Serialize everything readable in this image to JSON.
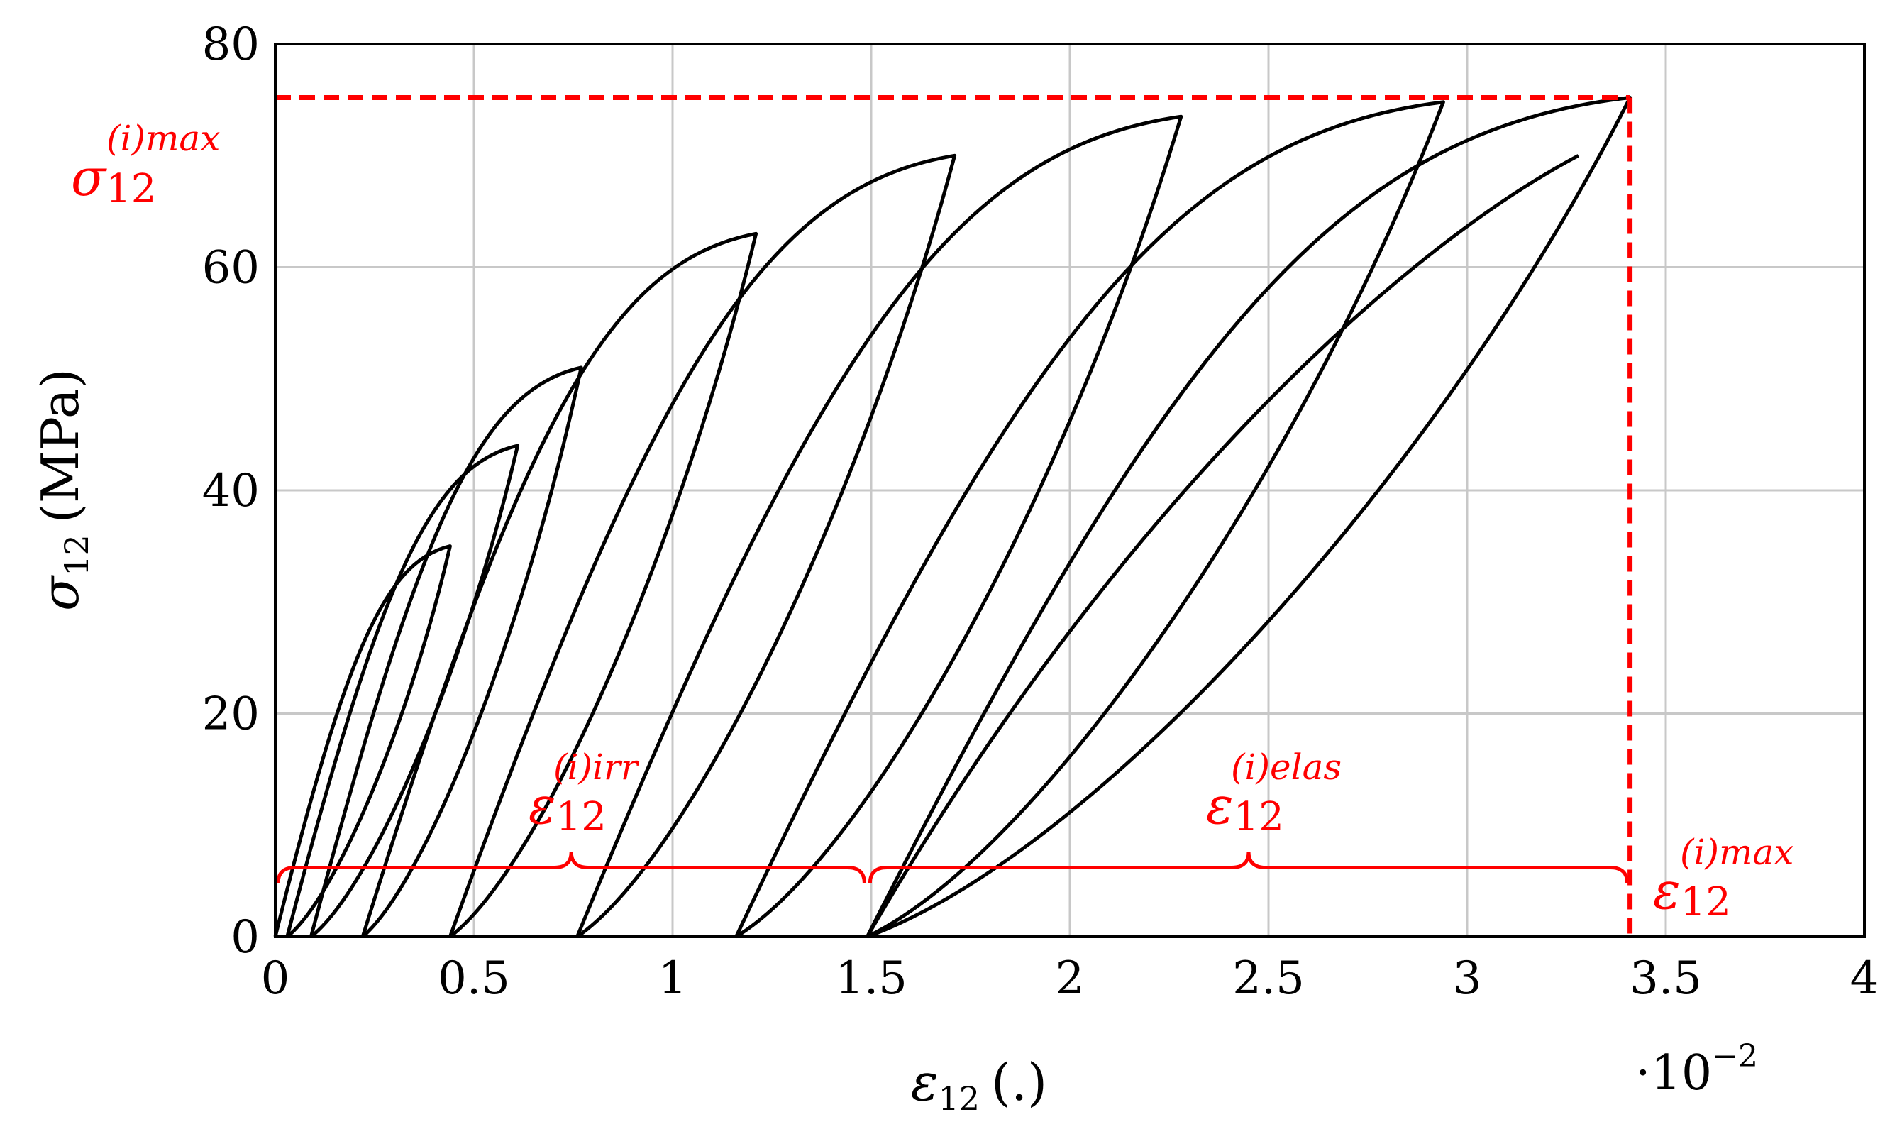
{
  "chart_data": {
    "type": "line",
    "xlabel": {
      "symbol": "ε",
      "sub": "12",
      "unit": "(.)"
    },
    "ylabel": {
      "symbol": "σ",
      "sub": "12",
      "unit": "(MPa)"
    },
    "x_multiplier": {
      "base": "·10",
      "exp": "−2"
    },
    "xlim": [
      0,
      4
    ],
    "ylim": [
      0,
      80
    ],
    "xticks": [
      0,
      0.5,
      1,
      1.5,
      2,
      2.5,
      3,
      3.5,
      4
    ],
    "xtick_labels": [
      "0",
      "0.5",
      "1",
      "1.5",
      "2",
      "2.5",
      "3",
      "3.5",
      "4"
    ],
    "yticks": [
      0,
      20,
      40,
      60,
      80
    ],
    "ytick_labels": [
      "0",
      "20",
      "40",
      "60",
      "80"
    ],
    "grid": true,
    "loops": [
      {
        "start": 0.0,
        "peak": [
          0.44,
          35.0
        ],
        "ret": 0.03
      },
      {
        "start": 0.03,
        "peak": [
          0.61,
          44.0
        ],
        "ret": 0.09
      },
      {
        "start": 0.09,
        "peak": [
          0.77,
          51.0
        ],
        "ret": 0.22
      },
      {
        "start": 0.22,
        "peak": [
          1.21,
          63.0
        ],
        "ret": 0.44
      },
      {
        "start": 0.44,
        "peak": [
          1.71,
          70.0
        ],
        "ret": 0.76
      },
      {
        "start": 0.76,
        "peak": [
          2.28,
          73.5
        ],
        "ret": 1.16
      },
      {
        "start": 1.16,
        "peak": [
          2.94,
          74.8
        ],
        "ret": 1.49
      },
      {
        "start": 1.49,
        "peak": [
          3.41,
          75.2
        ],
        "ret": 1.49
      }
    ],
    "final_reload": {
      "start": 1.49,
      "end": [
        3.28,
        70.0
      ]
    },
    "annotations": {
      "sigma_max": {
        "symbol": "σ",
        "sub": "12",
        "sup": "(i)max",
        "value_y": 75.2
      },
      "eps_max": {
        "symbol": "ε",
        "sub": "12",
        "sup": "(i)max",
        "value_x": 3.41
      },
      "eps_irr": {
        "symbol": "ε",
        "sub": "12",
        "sup": "(i)irr",
        "range": [
          0,
          1.49
        ]
      },
      "eps_elas": {
        "symbol": "ε",
        "sub": "12",
        "sup": "(i)elas",
        "range": [
          1.49,
          3.41
        ]
      },
      "brace_y": 6.2
    },
    "colors": {
      "curve": "#000000",
      "annotation": "#ff0000",
      "grid": "#c8c8c8"
    }
  }
}
